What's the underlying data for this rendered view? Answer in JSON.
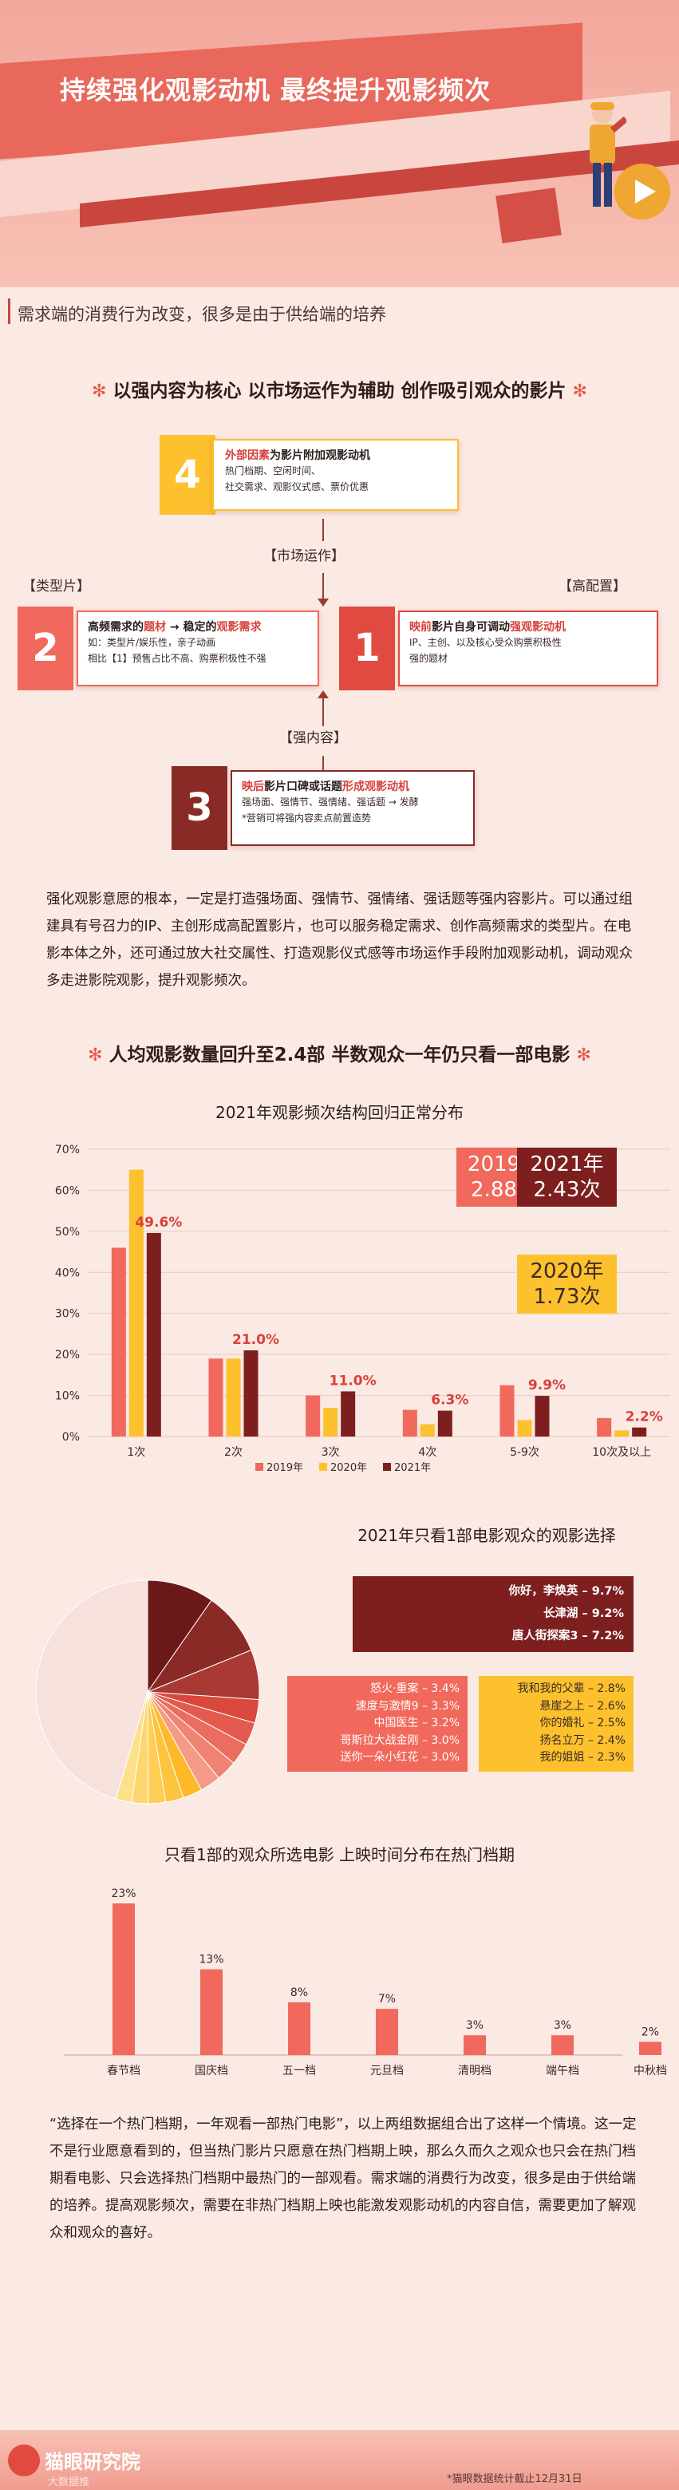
{
  "header": {
    "title": "持续强化观影动机 最终提升观影频次",
    "subtitle": "需求端的消费行为改变，很多是由于供给端的培养"
  },
  "section1": {
    "title": "以强内容为核心 以市场运作为辅助 创作吸引观众的影片",
    "star": "✻",
    "box4": {
      "num": "4",
      "title_red": "外部因素",
      "title_rest": "为影片附加观影动机",
      "line1": "热门档期、空闲时间、",
      "line2": "社交需求、观影仪式感、票价优惠"
    },
    "box2": {
      "num": "2",
      "title_a": "高频需求的",
      "title_b": "题材",
      "title_c": " → 稳定的",
      "title_d": "观影需求",
      "line1": "如：类型片/娱乐性，亲子动画",
      "line2": "相比【1】预售占比不高、购票积极性不强"
    },
    "box1": {
      "num": "1",
      "title_a": "映前",
      "title_b": "影片自身可调动",
      "title_c": "强观影动机",
      "line1": "IP、主创、以及核心受众购票积极性",
      "line2": "强的题材"
    },
    "box3": {
      "num": "3",
      "title_a": "映后",
      "title_b": "影片口碑或话题",
      "title_c": "形成观影动机",
      "line1": "强场面、强情节、强情绪、强话题 → 发酵",
      "line2": "*营销可将强内容卖点前置造势"
    },
    "tag_market": "【市场运作】",
    "tag_type": "【类型片】",
    "tag_high": "【高配置】",
    "tag_strong": "【强内容】",
    "paragraph": "强化观影意愿的根本，一定是打造强场面、强情节、强情绪、强话题等强内容影片。可以通过组建具有号召力的IP、主创形成高配置影片，也可以服务稳定需求、创作高频需求的类型片。在电影本体之外，还可通过放大社交属性、打造观影仪式感等市场运作手段附加观影动机，调动观众多走进影院观影，提升观影频次。"
  },
  "section2": {
    "title": "人均观影数量回升至2.4部 半数观众一年仍只看一部电影",
    "star": "✻",
    "info_2019_a": "2019年",
    "info_2019_b": "2.88次",
    "info_2021_a": "2021年",
    "info_2021_b": "2.43次",
    "info_2020_a": "2020年",
    "info_2020_b": "1.73次",
    "list_big": [
      "你好，李焕英 – 9.7%",
      "长津湖 – 9.2%",
      "唐人街探案3 – 7.2%"
    ],
    "list_mid": [
      "怒火·重案 – 3.4%",
      "速度与激情9 – 3.3%",
      "中国医生 – 3.2%",
      "哥斯拉大战金刚 – 3.0%",
      "送你一朵小红花 – 3.0%"
    ],
    "list_yel": [
      "我和我的父辈 – 2.8%",
      "悬崖之上 – 2.6%",
      "你的婚礼 – 2.5%",
      "扬名立万 – 2.4%",
      "我的姐姐 – 2.3%"
    ],
    "paragraph": "“选择在一个热门档期，一年观看一部热门电影”，以上两组数据组合出了这样一个情境。这一定不是行业愿意看到的，但当热门影片只愿意在热门档期上映，那么久而久之观众也只会在热门档期看电影、只会选择热门档期中最热门的一部观看。需求端的消费行为改变，很多是由于供给端的培养。提高观影频次，需要在非热门档期上映也能激发观影动机的内容自信，需要更加了解观众和观众的喜好。"
  },
  "chart_data": [
    {
      "type": "bar",
      "title": "2021年观影频次结构回归正常分布",
      "categories": [
        "1次",
        "2次",
        "3次",
        "4次",
        "5-9次",
        "10次及以上"
      ],
      "series": [
        {
          "name": "2019年",
          "values": [
            46,
            19,
            10,
            6.5,
            12.5,
            4.5
          ],
          "color": "#f0695c"
        },
        {
          "name": "2020年",
          "values": [
            65,
            19,
            7,
            3,
            4,
            1.5
          ],
          "color": "#fcc12d"
        },
        {
          "name": "2021年",
          "values": [
            49.6,
            21.0,
            11.0,
            6.3,
            9.9,
            2.2
          ],
          "color": "#7d1f1f"
        }
      ],
      "data_labels": [
        "49.6%",
        "21.0%",
        "11.0%",
        "6.3%",
        "9.9%",
        "2.2%"
      ],
      "yticks": [
        "0%",
        "10%",
        "20%",
        "30%",
        "40%",
        "50%",
        "60%",
        "70%"
      ],
      "ylim": [
        0,
        70
      ],
      "legend": "bottom"
    },
    {
      "type": "pie",
      "title": "2021年只看1部电影观众的观影选择",
      "slices": [
        {
          "label": "你好，李焕英",
          "value": 9.7,
          "color": "#6b1818"
        },
        {
          "label": "长津湖",
          "value": 9.2,
          "color": "#8a2a26"
        },
        {
          "label": "唐人街探案3",
          "value": 7.2,
          "color": "#a83a33"
        },
        {
          "label": "怒火·重案",
          "value": 3.4,
          "color": "#d9473d"
        },
        {
          "label": "速度与激情9",
          "value": 3.3,
          "color": "#e35a4e"
        },
        {
          "label": "中国医生",
          "value": 3.2,
          "color": "#eb6d60"
        },
        {
          "label": "哥斯拉大战金刚",
          "value": 3.0,
          "color": "#f08373"
        },
        {
          "label": "送你一朵小红花",
          "value": 3.0,
          "color": "#f59a88"
        },
        {
          "label": "我和我的父辈",
          "value": 2.8,
          "color": "#fdb92a"
        },
        {
          "label": "悬崖之上",
          "value": 2.6,
          "color": "#fdc43e"
        },
        {
          "label": "你的婚礼",
          "value": 2.5,
          "color": "#fdcd56"
        },
        {
          "label": "扬名立万",
          "value": 2.4,
          "color": "#fdd66f"
        },
        {
          "label": "我的姐姐",
          "value": 2.3,
          "color": "#fde08a"
        },
        {
          "label": "",
          "value": 45.4,
          "color": "#f7e1dc"
        }
      ]
    },
    {
      "type": "bar",
      "title": "只看1部的观众所选电影 上映时间分布在热门档期",
      "categories": [
        "春节档",
        "国庆档",
        "五一档",
        "元旦档",
        "清明档",
        "端午档",
        "中秋档"
      ],
      "values": [
        23,
        13,
        8,
        7,
        3,
        3,
        2
      ],
      "data_labels": [
        "23%",
        "13%",
        "8%",
        "7%",
        "3%",
        "3%",
        "2%"
      ],
      "ylim": [
        0,
        23
      ],
      "color": "#f0695c"
    }
  ],
  "footer": {
    "brand": "猫眼研究院",
    "note": "*猫眼数据统计截止12月31日",
    "small": "大数据推"
  }
}
